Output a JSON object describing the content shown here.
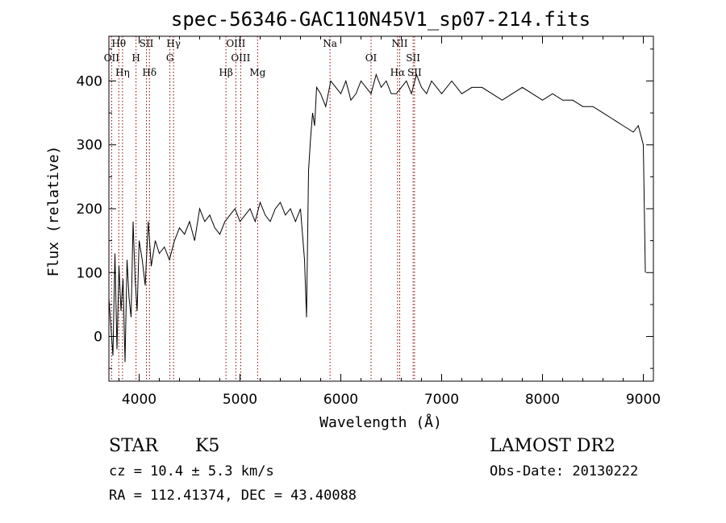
{
  "chart_data": {
    "type": "line",
    "title": "spec-56346-GAC110N45V1_sp07-214.fits",
    "xlabel": "Wavelength (Å)",
    "ylabel": "Flux (relative)",
    "xlim": [
      3700,
      9100
    ],
    "ylim": [
      -70,
      470
    ],
    "x_ticks": [
      4000,
      5000,
      6000,
      7000,
      8000,
      9000
    ],
    "y_ticks": [
      0,
      100,
      200,
      300,
      400
    ],
    "x_tick_labels": [
      "4000",
      "5000",
      "6000",
      "7000",
      "8000",
      "9000"
    ],
    "y_tick_labels": [
      "0",
      "100",
      "200",
      "300",
      "400"
    ],
    "grid": false,
    "legend": "none",
    "line_color": "#000000",
    "marker_color": "#8b0000",
    "series": [
      {
        "x": [
          3700,
          3740,
          3760,
          3780,
          3800,
          3820,
          3840,
          3860,
          3880,
          3900,
          3920,
          3940,
          3960,
          3980,
          4000,
          4030,
          4060,
          4090,
          4120,
          4160,
          4200,
          4250,
          4300,
          4350,
          4400,
          4450,
          4500,
          4550,
          4600,
          4650,
          4700,
          4750,
          4800,
          4850,
          4900,
          4950,
          5000,
          5050,
          5100,
          5150,
          5200,
          5250,
          5300,
          5350,
          5400,
          5450,
          5500,
          5550,
          5600,
          5640,
          5660,
          5680,
          5700,
          5720,
          5740,
          5760,
          5800,
          5850,
          5900,
          5950,
          6000,
          6050,
          6100,
          6150,
          6200,
          6250,
          6300,
          6350,
          6400,
          6450,
          6500,
          6550,
          6600,
          6650,
          6700,
          6750,
          6800,
          6850,
          6900,
          6950,
          7000,
          7100,
          7200,
          7300,
          7400,
          7500,
          7600,
          7700,
          7800,
          7900,
          8000,
          8100,
          8200,
          8300,
          8400,
          8500,
          8600,
          8700,
          8800,
          8900,
          8950,
          9000,
          9020
        ],
        "y": [
          60,
          -30,
          130,
          -20,
          110,
          40,
          90,
          -40,
          120,
          60,
          30,
          180,
          90,
          40,
          150,
          120,
          80,
          180,
          110,
          150,
          130,
          140,
          120,
          150,
          170,
          160,
          180,
          150,
          200,
          180,
          190,
          170,
          160,
          180,
          190,
          200,
          180,
          190,
          200,
          180,
          210,
          190,
          180,
          200,
          210,
          190,
          200,
          180,
          200,
          120,
          30,
          260,
          310,
          350,
          330,
          390,
          380,
          360,
          400,
          390,
          380,
          400,
          370,
          380,
          400,
          390,
          380,
          410,
          390,
          400,
          380,
          380,
          390,
          400,
          380,
          410,
          390,
          380,
          400,
          390,
          380,
          400,
          380,
          390,
          390,
          380,
          370,
          380,
          390,
          380,
          370,
          380,
          370,
          370,
          360,
          360,
          350,
          340,
          330,
          320,
          330,
          300,
          100
        ]
      }
    ],
    "lines": [
      {
        "name": "Hθ",
        "x": 3798
      },
      {
        "name": "OII",
        "x": 3727
      },
      {
        "name": "Hη",
        "x": 3835
      },
      {
        "name": "SII",
        "x": 4072
      },
      {
        "name": "H",
        "x": 3969
      },
      {
        "name": "Hδ",
        "x": 4102
      },
      {
        "name": "Hγ",
        "x": 4341
      },
      {
        "name": "G",
        "x": 4305
      },
      {
        "name": "Hβ",
        "x": 4861
      },
      {
        "name": "OIII",
        "x": 4959
      },
      {
        "name": "OIII",
        "x": 5007
      },
      {
        "name": "Mg",
        "x": 5175
      },
      {
        "name": "Na",
        "x": 5893
      },
      {
        "name": "OI",
        "x": 6300
      },
      {
        "name": "Hα",
        "x": 6563
      },
      {
        "name": "NII",
        "x": 6584
      },
      {
        "name": "SII",
        "x": 6717
      },
      {
        "name": "SII",
        "x": 6731
      }
    ]
  },
  "info": {
    "class": "STAR",
    "subclass": "K5",
    "survey": "LAMOST DR2",
    "cz": "cz = 10.4 ± 5.3 km/s",
    "obs_date": "Obs-Date: 20130222",
    "coords": "RA = 112.41374, DEC =  43.40088"
  }
}
